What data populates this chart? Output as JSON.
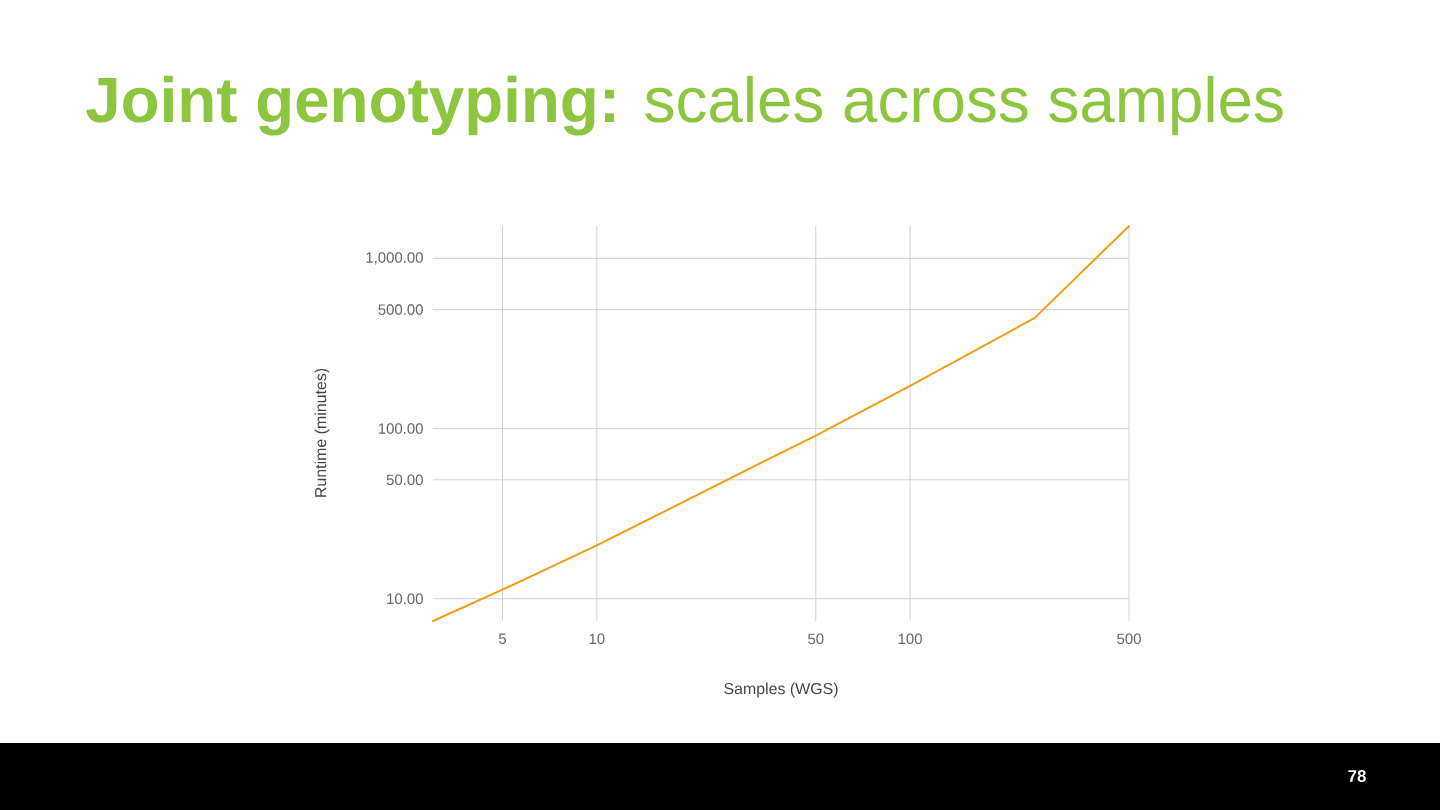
{
  "chart_data": {
    "type": "line",
    "title": "**Joint genotyping:** scales across samples",
    "xlabel": "Samples (WGS)",
    "ylabel": "Runtime (minutes)",
    "x": [
      3,
      5,
      10,
      50,
      100,
      250,
      500
    ],
    "values": [
      7.4,
      11.3,
      20.6,
      91,
      178,
      447,
      1550
    ],
    "color": "#f39c19",
    "log": "xy",
    "xlim": [
      3,
      500
    ],
    "ylim": [
      7.4,
      1550
    ],
    "xticks": [
      5,
      10,
      50,
      100,
      500
    ],
    "yticks": [
      {
        "value": 10,
        "label": "10.00"
      },
      {
        "value": 50,
        "label": "50.00"
      },
      {
        "value": 100,
        "label": "100.00"
      },
      {
        "value": 500,
        "label": "500.00"
      },
      {
        "value": 1000,
        "label": "1,000.00"
      }
    ],
    "grid": true,
    "annotations": [
      "78"
    ]
  }
}
